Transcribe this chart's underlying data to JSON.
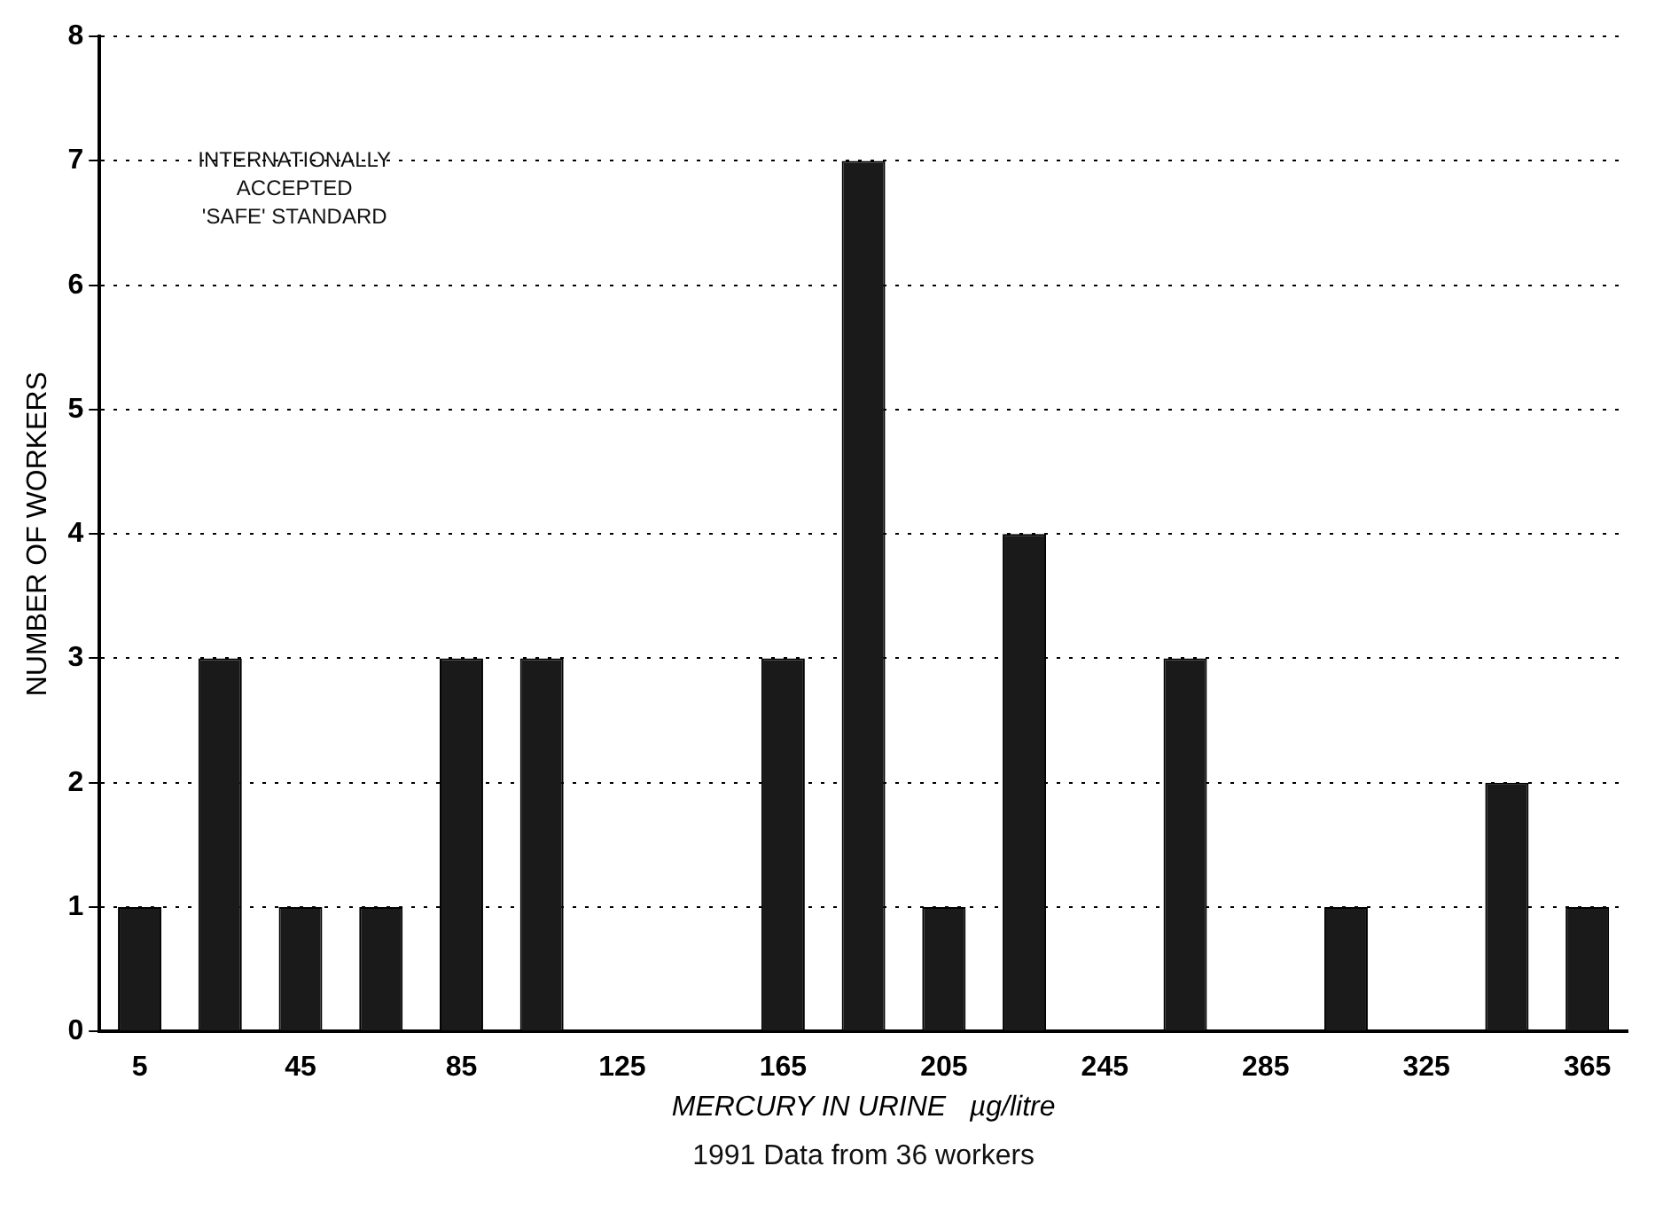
{
  "chart_data": {
    "type": "bar",
    "categories": [
      "5",
      null,
      "45",
      null,
      "85",
      null,
      "125",
      null,
      "165",
      null,
      "205",
      null,
      "245",
      null,
      "285",
      null,
      "325",
      null,
      "365"
    ],
    "values": [
      1,
      3,
      1,
      1,
      3,
      3,
      0,
      0,
      3,
      7,
      1,
      4,
      0,
      3,
      0,
      1,
      0,
      2,
      1
    ],
    "color": "#1a1a1a",
    "ylabel": "NUMBER OF WORKERS",
    "xlabel": "MERCURY IN URINE   µg/litre",
    "ylim": [
      0,
      8
    ],
    "yticks": [
      0,
      1,
      2,
      3,
      4,
      5,
      6,
      7,
      8
    ],
    "grid": "y",
    "annotations": [
      "INTERNATIONALLY\nACCEPTED\n'SAFE' STANDARD",
      "1991 Data from 36 workers"
    ]
  }
}
